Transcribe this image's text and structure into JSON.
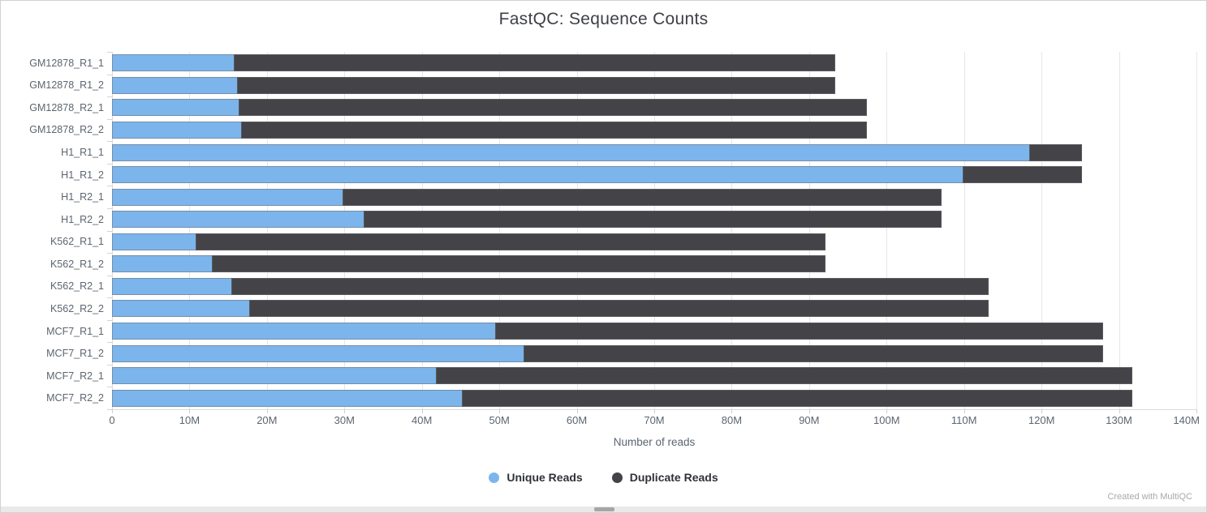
{
  "page": {
    "watermark": "Created with MultiQC"
  },
  "chart_data": {
    "type": "bar",
    "orientation": "horizontal",
    "stacked": true,
    "title": "FastQC: Sequence Counts",
    "xlabel": "Number of reads",
    "x_tick_labels": [
      "0",
      "10M",
      "20M",
      "30M",
      "40M",
      "50M",
      "60M",
      "70M",
      "80M",
      "90M",
      "100M",
      "110M",
      "120M",
      "130M",
      "140M"
    ],
    "xlim_millions": [
      0,
      140
    ],
    "grid": "vertical-only",
    "legend_position": "bottom-center",
    "categories": [
      "GM12878_R1_1",
      "GM12878_R1_2",
      "GM12878_R2_1",
      "GM12878_R2_2",
      "H1_R1_1",
      "H1_R1_2",
      "H1_R2_1",
      "H1_R2_2",
      "K562_R1_1",
      "K562_R1_2",
      "K562_R2_1",
      "K562_R2_2",
      "MCF7_R1_1",
      "MCF7_R1_2",
      "MCF7_R2_1",
      "MCF7_R2_2"
    ],
    "series": [
      {
        "name": "Unique Reads",
        "color": "#7cb5ec",
        "values_millions": [
          15.8,
          16.2,
          16.5,
          16.8,
          118.5,
          109.9,
          29.9,
          32.6,
          10.9,
          13.0,
          15.5,
          17.8,
          49.6,
          53.2,
          41.9,
          45.3
        ]
      },
      {
        "name": "Duplicate Reads",
        "color": "#434348",
        "values_millions": [
          77.7,
          77.3,
          81.1,
          80.8,
          6.8,
          15.4,
          77.3,
          74.6,
          81.3,
          79.2,
          97.8,
          95.5,
          78.5,
          74.9,
          89.9,
          86.5
        ]
      }
    ],
    "totals_millions": [
      93.5,
      93.5,
      97.6,
      97.6,
      125.3,
      125.3,
      107.2,
      107.2,
      92.2,
      92.2,
      113.3,
      113.3,
      128.1,
      128.1,
      131.8,
      131.8
    ]
  }
}
